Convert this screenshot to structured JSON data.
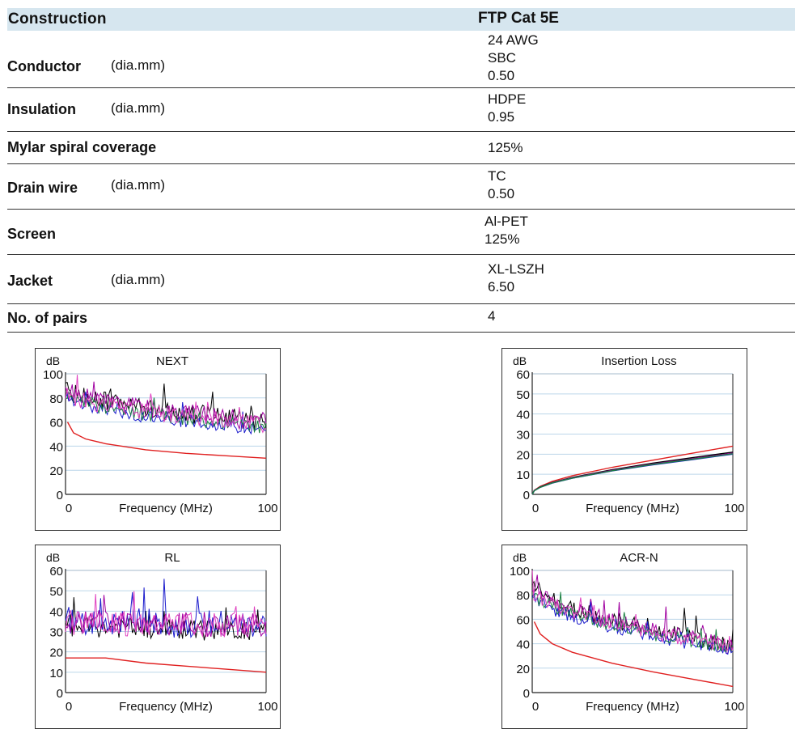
{
  "table": {
    "header": {
      "label": "Construction",
      "product": "FTP Cat 5E"
    },
    "rows": [
      {
        "label": "Conductor",
        "unit": "(dia.mm)",
        "lines": [
          "24 AWG",
          "SBC",
          "0.50"
        ]
      },
      {
        "label": "Insulation",
        "unit": "(dia.mm)",
        "lines": [
          "HDPE",
          "0.95"
        ]
      },
      {
        "label": "Mylar spiral coverage",
        "unit": "",
        "lines": [
          "125%"
        ]
      },
      {
        "label": "Drain  wire",
        "unit": "(dia.mm)",
        "lines": [
          "TC",
          "0.50"
        ]
      },
      {
        "label": "Screen",
        "unit": "",
        "lines": [
          "Al-PET",
          "125%"
        ]
      },
      {
        "label": "Jacket",
        "unit": "(dia.mm)",
        "lines": [
          "XL-LSZH",
          "6.50"
        ]
      },
      {
        "label": "No. of pairs",
        "unit": "",
        "lines": [
          "4"
        ]
      }
    ]
  },
  "chart_data": [
    {
      "type": "line",
      "title": "NEXT",
      "ylabel": "dB",
      "xlabel": "Frequency (MHz)",
      "xlim": [
        0,
        100
      ],
      "ylim": [
        0,
        100
      ],
      "yticks": [
        0,
        20,
        40,
        60,
        80,
        100
      ],
      "xticks": [
        0,
        100
      ],
      "series": [
        {
          "color": "#e02020",
          "x": [
            1,
            4,
            10,
            20,
            40,
            60,
            80,
            100
          ],
          "values": [
            60,
            51,
            46,
            42,
            37,
            34,
            32,
            30
          ]
        },
        {
          "color": "#000000",
          "x": [
            0,
            100
          ],
          "values": [
            88,
            60
          ],
          "noisy": true,
          "amp": 16
        },
        {
          "color": "#a000a0",
          "x": [
            0,
            100
          ],
          "values": [
            87,
            60
          ],
          "noisy": true,
          "amp": 16
        },
        {
          "color": "#1a1acc",
          "x": [
            0,
            100
          ],
          "values": [
            80,
            54
          ],
          "noisy": true,
          "amp": 11
        },
        {
          "color": "#1a8040",
          "x": [
            0,
            100
          ],
          "values": [
            82,
            56
          ],
          "noisy": true,
          "amp": 12
        },
        {
          "color": "#e040c0",
          "x": [
            0,
            100
          ],
          "values": [
            84,
            58
          ],
          "noisy": true,
          "amp": 14
        }
      ]
    },
    {
      "type": "line",
      "title": "Insertion Loss",
      "ylabel": "dB",
      "xlabel": "Frequency (MHz)",
      "xlim": [
        0,
        100
      ],
      "ylim": [
        0,
        60
      ],
      "yticks": [
        0,
        10,
        20,
        30,
        40,
        50,
        60
      ],
      "xticks": [
        0,
        100
      ],
      "series": [
        {
          "color": "#e02020",
          "x": [
            0,
            1,
            4,
            10,
            20,
            40,
            60,
            80,
            100
          ],
          "values": [
            0,
            2,
            4,
            6.5,
            9.3,
            13.5,
            17,
            20.5,
            24
          ]
        },
        {
          "color": "#000000",
          "x": [
            0,
            1,
            4,
            10,
            20,
            40,
            60,
            80,
            100
          ],
          "values": [
            0,
            1.9,
            3.7,
            5.9,
            8.4,
            12.3,
            15.5,
            18.3,
            21
          ]
        },
        {
          "color": "#a000a0",
          "x": [
            0,
            1,
            4,
            10,
            20,
            40,
            60,
            80,
            100
          ],
          "values": [
            0,
            1.9,
            3.6,
            5.8,
            8.2,
            12,
            15.1,
            17.8,
            20.5
          ]
        },
        {
          "color": "#1a1acc",
          "x": [
            0,
            1,
            4,
            10,
            20,
            40,
            60,
            80,
            100
          ],
          "values": [
            0,
            1.8,
            3.5,
            5.6,
            8,
            11.7,
            14.7,
            17.3,
            20
          ]
        },
        {
          "color": "#1a8040",
          "x": [
            0,
            1,
            4,
            10,
            20,
            40,
            60,
            80,
            100
          ],
          "values": [
            0,
            1.8,
            3.5,
            5.7,
            8.1,
            11.8,
            14.9,
            17.5,
            20.2
          ]
        }
      ]
    },
    {
      "type": "line",
      "title": "RL",
      "ylabel": "dB",
      "xlabel": "Frequency (MHz)",
      "xlim": [
        0,
        100
      ],
      "ylim": [
        0,
        60
      ],
      "yticks": [
        0,
        10,
        20,
        30,
        40,
        50,
        60
      ],
      "xticks": [
        0,
        100
      ],
      "series": [
        {
          "color": "#e02020",
          "x": [
            0,
            20,
            40,
            60,
            80,
            100
          ],
          "values": [
            17,
            17,
            14.5,
            13,
            11.5,
            10
          ]
        },
        {
          "color": "#000000",
          "x": [
            0,
            100
          ],
          "values": [
            33,
            30
          ],
          "noisy": true,
          "amp": 10
        },
        {
          "color": "#1a1acc",
          "x": [
            0,
            100
          ],
          "values": [
            36,
            33
          ],
          "noisy": true,
          "amp": 14
        },
        {
          "color": "#a000a0",
          "x": [
            0,
            100
          ],
          "values": [
            35,
            33
          ],
          "noisy": true,
          "amp": 12
        },
        {
          "color": "#e040c0",
          "x": [
            0,
            100
          ],
          "values": [
            34,
            33
          ],
          "noisy": true,
          "amp": 12
        }
      ]
    },
    {
      "type": "line",
      "title": "ACR-N",
      "ylabel": "dB",
      "xlabel": "Frequency (MHz)",
      "xlim": [
        0,
        100
      ],
      "ylim": [
        0,
        100
      ],
      "yticks": [
        0,
        20,
        40,
        60,
        80,
        100
      ],
      "xticks": [
        0,
        100
      ],
      "series": [
        {
          "color": "#e02020",
          "x": [
            1,
            4,
            10,
            20,
            40,
            60,
            80,
            100
          ],
          "values": [
            58,
            48,
            40,
            33,
            24,
            17,
            11,
            5
          ]
        },
        {
          "color": "#000000",
          "x": [
            0,
            100
          ],
          "values": [
            88,
            38
          ],
          "noisy": true,
          "amp": 14
        },
        {
          "color": "#a000a0",
          "x": [
            0,
            100
          ],
          "values": [
            86,
            38
          ],
          "noisy": true,
          "amp": 14
        },
        {
          "color": "#1a1acc",
          "x": [
            0,
            100
          ],
          "values": [
            80,
            34
          ],
          "noisy": true,
          "amp": 10
        },
        {
          "color": "#1a8040",
          "x": [
            0,
            100
          ],
          "values": [
            82,
            36
          ],
          "noisy": true,
          "amp": 11
        },
        {
          "color": "#e040c0",
          "x": [
            0,
            100
          ],
          "values": [
            84,
            37
          ],
          "noisy": true,
          "amp": 12
        }
      ]
    }
  ]
}
